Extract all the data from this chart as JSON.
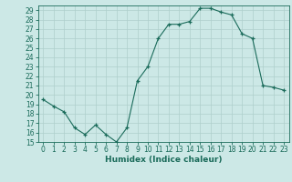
{
  "x": [
    0,
    1,
    2,
    3,
    4,
    5,
    6,
    7,
    8,
    9,
    10,
    11,
    12,
    13,
    14,
    15,
    16,
    17,
    18,
    19,
    20,
    21,
    22,
    23
  ],
  "y": [
    19.5,
    18.8,
    18.2,
    16.5,
    15.8,
    16.8,
    15.8,
    15.0,
    16.5,
    21.5,
    23.0,
    26.0,
    27.5,
    27.5,
    27.8,
    29.2,
    29.2,
    28.8,
    28.5,
    26.5,
    26.0,
    21.0,
    20.8,
    20.5
  ],
  "xlabel": "Humidex (Indice chaleur)",
  "xlim": [
    -0.5,
    23.5
  ],
  "ylim": [
    15,
    29.5
  ],
  "yticks": [
    15,
    16,
    17,
    18,
    19,
    20,
    21,
    22,
    23,
    24,
    25,
    26,
    27,
    28,
    29
  ],
  "xticks": [
    0,
    1,
    2,
    3,
    4,
    5,
    6,
    7,
    8,
    9,
    10,
    11,
    12,
    13,
    14,
    15,
    16,
    17,
    18,
    19,
    20,
    21,
    22,
    23
  ],
  "line_color": "#1a6b5a",
  "marker_color": "#1a6b5a",
  "bg_color": "#cce8e6",
  "grid_color": "#aecfcc",
  "label_fontsize": 6.5,
  "tick_fontsize": 5.5
}
